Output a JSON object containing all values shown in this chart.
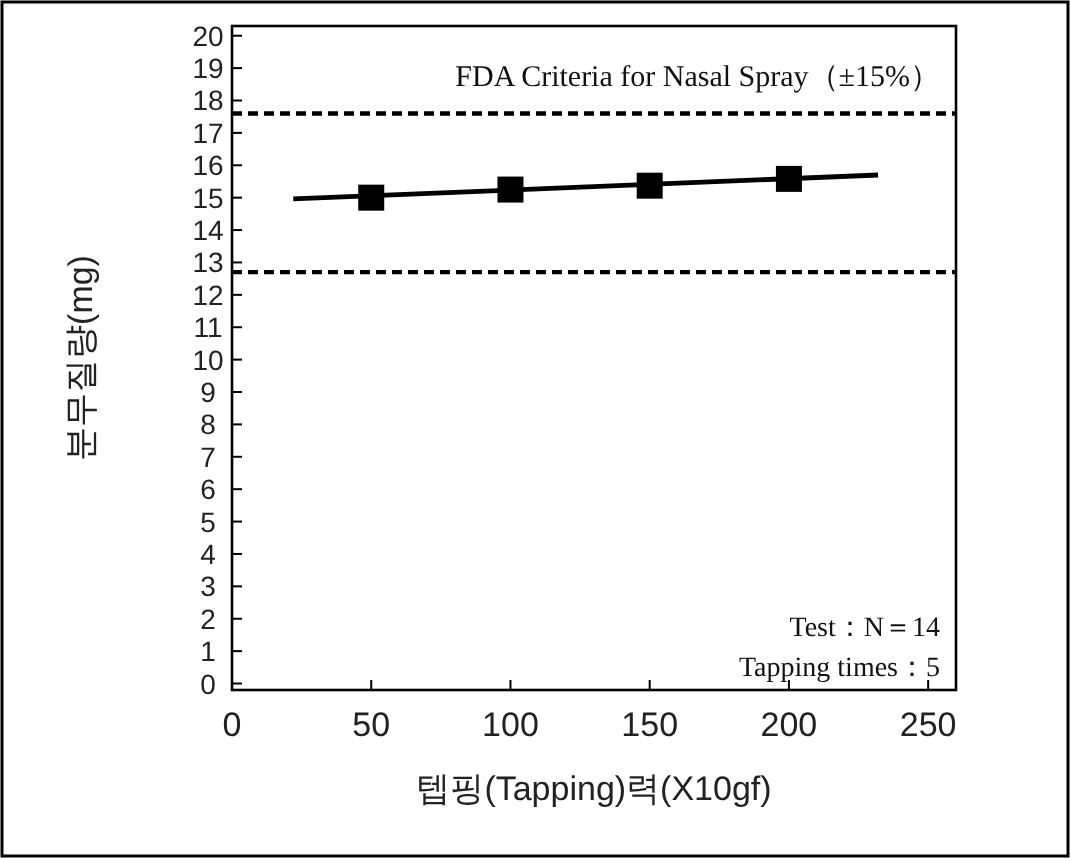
{
  "chart_data": {
    "type": "scatter",
    "xlabel": "텝핑(Tapping)력(X10gf)",
    "ylabel": "분무질량(mg)",
    "x": [
      50,
      100,
      150,
      200
    ],
    "series": [
      {
        "color": "#000000",
        "marker": "square",
        "values": [
          15.0,
          15.25,
          15.37,
          15.58
        ]
      },
      {
        "type": "line",
        "color": "#000000",
        "marker": "none",
        "x": [
          22,
          232
        ],
        "values": [
          14.96,
          15.7
        ]
      }
    ],
    "xlim": [
      0,
      260
    ],
    "xticks": [
      0,
      50,
      100,
      150,
      200,
      250
    ],
    "ylim": [
      -0.2,
      20.3
    ],
    "yticks": [
      0,
      1,
      2,
      3,
      4,
      5,
      6,
      7,
      8,
      9,
      10,
      11,
      12,
      13,
      14,
      15,
      16,
      17,
      18,
      19,
      20
    ],
    "ref_lines": [
      {
        "axis": "y",
        "value": 17.6,
        "line_style": "dashed",
        "color": "#000000"
      },
      {
        "axis": "y",
        "value": 12.7,
        "line_style": "dashed",
        "color": "#000000"
      }
    ],
    "annotations": [
      "FDA Criteria for Nasal Spray（±15%）",
      "Test：N＝14",
      "Tapping times：5"
    ],
    "grid": false
  }
}
